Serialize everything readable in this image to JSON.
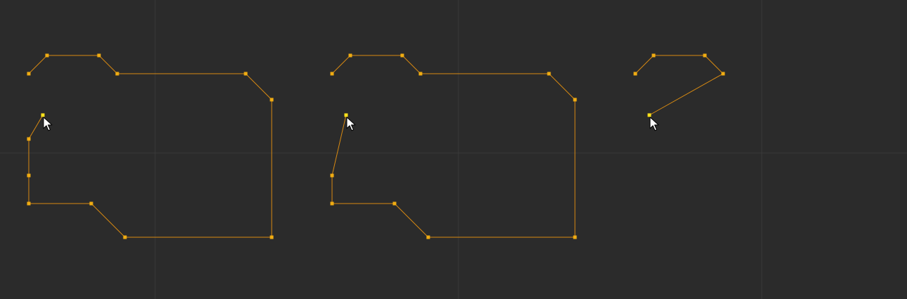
{
  "viewport": {
    "background": "#2b2b2b",
    "grid_color": "#3a3a3a"
  },
  "curve_style": {
    "edge_color": "#d88a12",
    "vertex_color": "#f0ac12",
    "selected_vertex_color": "#ffe21a",
    "cursor": "arrow-cursor-icon"
  },
  "panels": [
    {
      "name": "panel-1",
      "state": "original outline with extra vertices on left"
    },
    {
      "name": "panel-2",
      "state": "vertex removed, edge reconnected"
    },
    {
      "name": "panel-3",
      "state": "partial outline, new segment"
    }
  ]
}
